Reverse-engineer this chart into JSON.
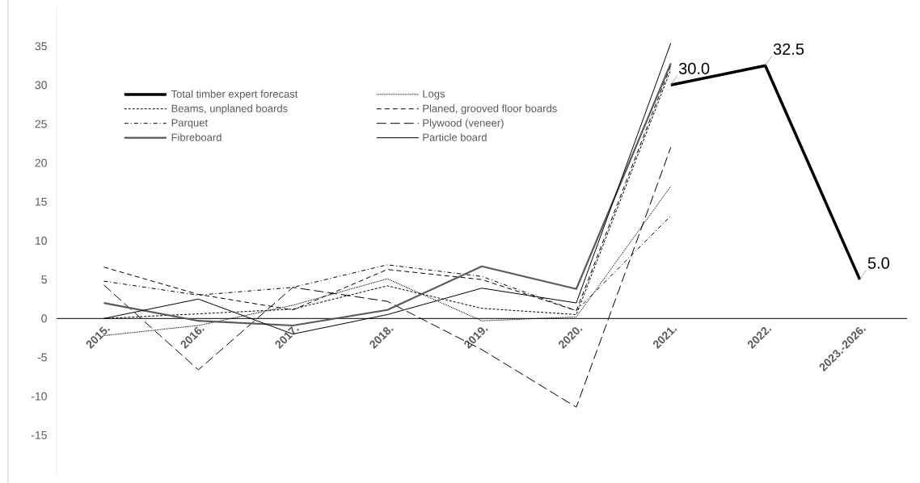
{
  "chart_data": {
    "type": "line",
    "categories": [
      "2015.",
      "2016.",
      "2017.",
      "2018.",
      "2019.",
      "2020.",
      "2021.",
      "2022.",
      "2023.-2026."
    ],
    "ylim": [
      -20,
      40
    ],
    "yticks": [
      -15,
      -10,
      -5,
      0,
      5,
      10,
      15,
      20,
      25,
      30,
      35
    ],
    "grid": false,
    "legend": "top left",
    "series": [
      {
        "name": "Total timber expert forecast",
        "color": "#000000",
        "line_style": "solid",
        "values": [
          null,
          null,
          null,
          null,
          null,
          null,
          30.0,
          32.5,
          5.0
        ],
        "value_labels": [
          null,
          null,
          null,
          null,
          null,
          null,
          "30.0",
          "32.5",
          "5.0"
        ]
      },
      {
        "name": "Logs",
        "color": "#000000",
        "line_style": "dotted",
        "values": [
          -2.2,
          -0.9,
          1.7,
          5.1,
          -0.3,
          0.2,
          17.0,
          null,
          null
        ]
      },
      {
        "name": "Beams, unplaned boards",
        "color": "#000000",
        "line_style": "densely dashed",
        "values": [
          0.0,
          0.6,
          1.2,
          4.2,
          1.3,
          0.5,
          32.0,
          null,
          null
        ]
      },
      {
        "name": "Planed, grooved floor boards",
        "color": "#000000",
        "line_style": "dashed",
        "values": [
          6.6,
          3.1,
          1.1,
          6.3,
          5.0,
          1.0,
          32.5,
          null,
          null
        ]
      },
      {
        "name": "Parquet",
        "color": "#000000",
        "line_style": "dash dot",
        "values": [
          4.8,
          3.0,
          4.0,
          6.9,
          5.4,
          1.0,
          13.2,
          null,
          null
        ]
      },
      {
        "name": "Plywood (veneer)",
        "color": "#000000",
        "line_style": "long dashed",
        "values": [
          4.3,
          -6.6,
          4.0,
          2.2,
          -4.0,
          -11.4,
          22.0,
          null,
          null
        ]
      },
      {
        "name": "Fibreboard",
        "color": "#595959",
        "line_style": "solid",
        "values": [
          2.0,
          -0.3,
          -0.9,
          1.1,
          6.7,
          3.8,
          32.8,
          null,
          null
        ]
      },
      {
        "name": "Particle board",
        "color": "#000000",
        "line_style": "solid",
        "values": [
          0.0,
          2.5,
          -2.0,
          0.5,
          3.9,
          2.0,
          35.4,
          null,
          null
        ]
      }
    ]
  }
}
